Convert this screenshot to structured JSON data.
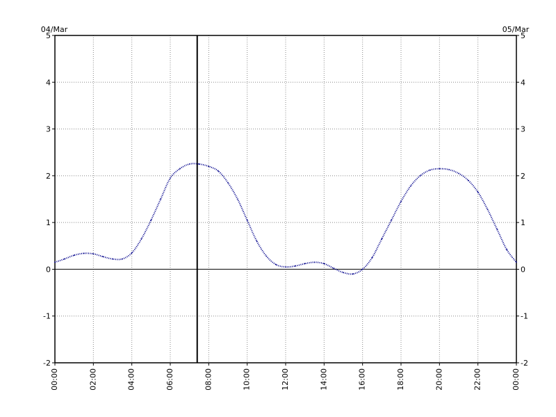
{
  "chart_data": {
    "type": "line",
    "date_left": "04/Mar",
    "date_right": "05/Mar",
    "xlim": [
      0,
      24
    ],
    "ylim": [
      -2,
      5
    ],
    "x_ticks": [
      "00:00",
      "02:00",
      "04:00",
      "06:00",
      "08:00",
      "10:00",
      "12:00",
      "14:00",
      "16:00",
      "18:00",
      "20:00",
      "22:00",
      "00:00"
    ],
    "y_ticks": [
      "-2",
      "-1",
      "0",
      "1",
      "2",
      "3",
      "4",
      "5"
    ],
    "grid": true,
    "current_time_marker": 7.4,
    "series": [
      {
        "color": "#00008b",
        "x": [
          0,
          0.5,
          1,
          1.5,
          2,
          2.5,
          3,
          3.5,
          4,
          4.5,
          5,
          5.5,
          6,
          6.5,
          7,
          7.5,
          8,
          8.5,
          9,
          9.5,
          10,
          10.5,
          11,
          11.5,
          12,
          12.5,
          13,
          13.5,
          14,
          14.5,
          15,
          15.5,
          16,
          16.5,
          17,
          17.5,
          18,
          18.5,
          19,
          19.5,
          20,
          20.5,
          21,
          21.5,
          22,
          22.5,
          23,
          23.5,
          24
        ],
        "y": [
          0.15,
          0.22,
          0.3,
          0.34,
          0.33,
          0.27,
          0.22,
          0.22,
          0.35,
          0.65,
          1.05,
          1.5,
          1.95,
          2.15,
          2.25,
          2.25,
          2.2,
          2.1,
          1.85,
          1.5,
          1.05,
          0.6,
          0.28,
          0.1,
          0.05,
          0.07,
          0.12,
          0.15,
          0.12,
          0.02,
          -0.07,
          -0.1,
          0.0,
          0.25,
          0.65,
          1.05,
          1.45,
          1.78,
          2.0,
          2.12,
          2.15,
          2.13,
          2.05,
          1.9,
          1.65,
          1.28,
          0.85,
          0.42,
          0.15
        ]
      }
    ]
  }
}
